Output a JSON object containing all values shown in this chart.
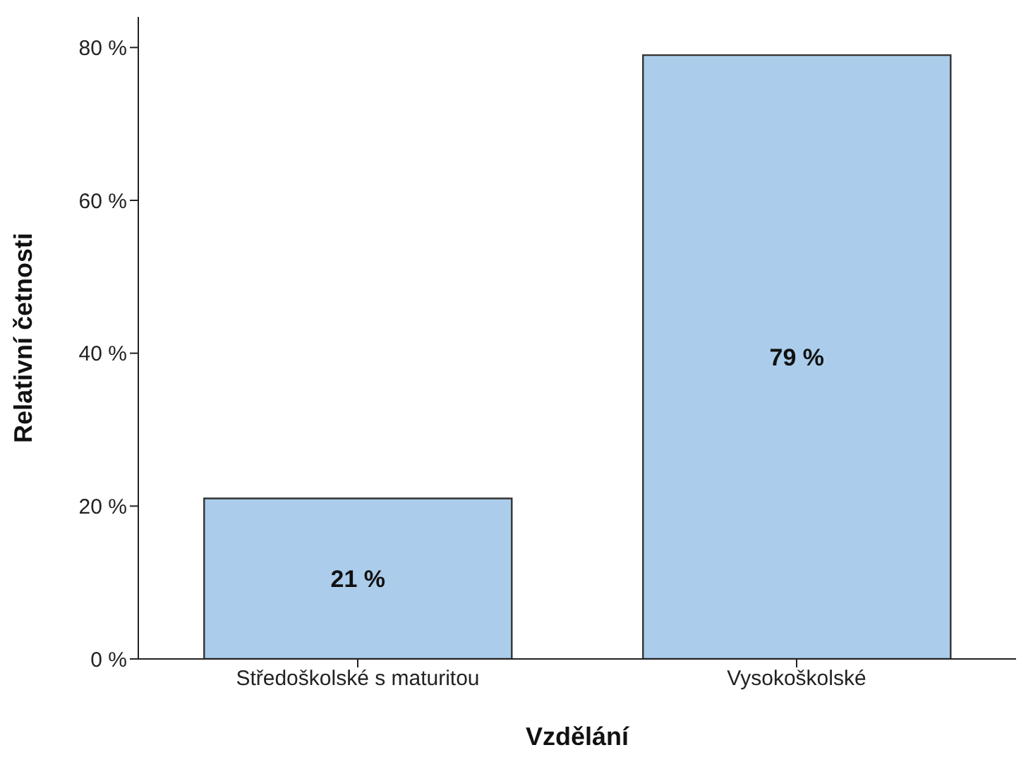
{
  "chart_data": {
    "type": "bar",
    "xlabel": "Vzdělání",
    "ylabel": "Relativní četnosti",
    "categories": [
      "Středoškolské s maturitou",
      "Vysokoškolské"
    ],
    "values": [
      21,
      79
    ],
    "value_labels": [
      "21 %",
      "79 %"
    ],
    "color": "#abcdeb",
    "ylim": [
      0,
      84
    ],
    "yticks": [
      {
        "value": 0,
        "label": "0 %"
      },
      {
        "value": 20,
        "label": "20 %"
      },
      {
        "value": 40,
        "label": "40 %"
      },
      {
        "value": 60,
        "label": "60 %"
      },
      {
        "value": 80,
        "label": "80 %"
      }
    ],
    "grid": false,
    "legend": false
  }
}
